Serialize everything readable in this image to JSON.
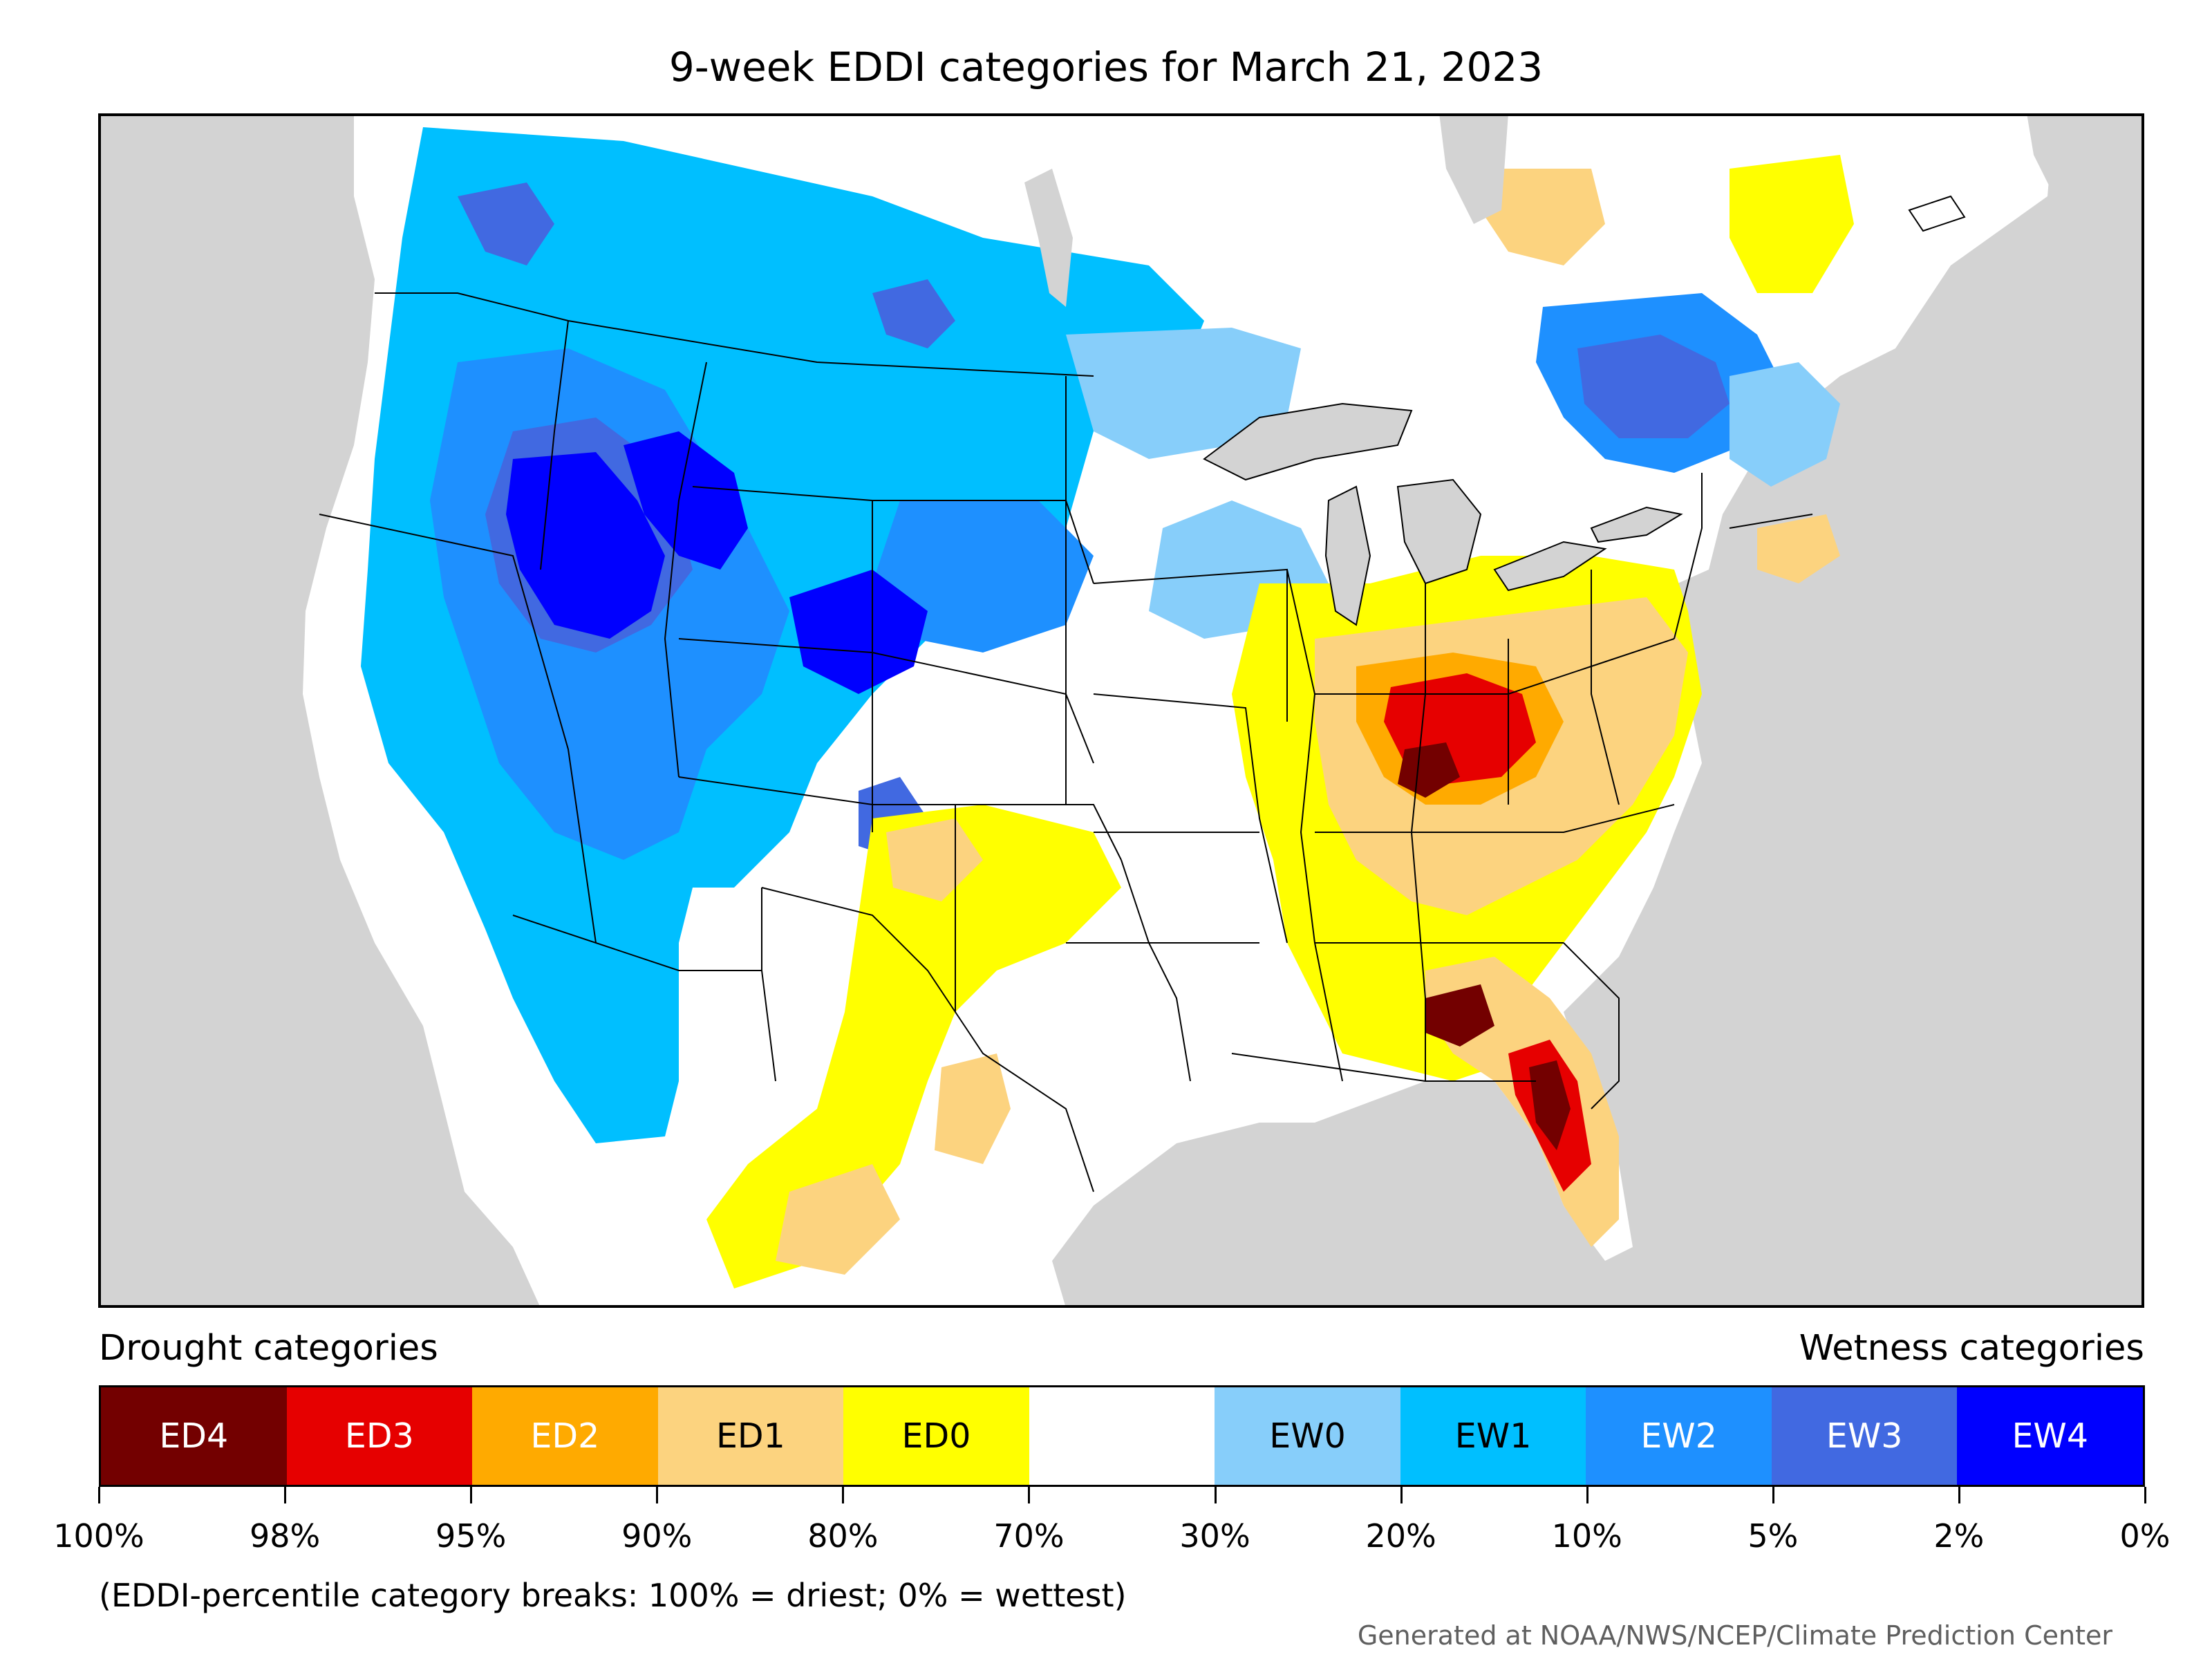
{
  "title": "9-week EDDI categories for March 21, 2023",
  "legend": {
    "drought_label": "Drought categories",
    "wetness_label": "Wetness categories",
    "categories": [
      {
        "label": "ED4",
        "color": "#730000",
        "text_color": "#ffffff"
      },
      {
        "label": "ED3",
        "color": "#e60000",
        "text_color": "#ffffff"
      },
      {
        "label": "ED2",
        "color": "#ffaa00",
        "text_color": "#ffffff"
      },
      {
        "label": "ED1",
        "color": "#fcd37f",
        "text_color": "#000000"
      },
      {
        "label": "ED0",
        "color": "#ffff00",
        "text_color": "#000000"
      },
      {
        "label": "",
        "color": "#ffffff",
        "text_color": "#000000"
      },
      {
        "label": "EW0",
        "color": "#87cefa",
        "text_color": "#000000"
      },
      {
        "label": "EW1",
        "color": "#00bfff",
        "text_color": "#000000"
      },
      {
        "label": "EW2",
        "color": "#1e90ff",
        "text_color": "#ffffff"
      },
      {
        "label": "EW3",
        "color": "#4169e1",
        "text_color": "#ffffff"
      },
      {
        "label": "EW4",
        "color": "#0000ff",
        "text_color": "#ffffff"
      }
    ],
    "breaks": [
      "100%",
      "98%",
      "95%",
      "90%",
      "80%",
      "70%",
      "30%",
      "20%",
      "10%",
      "5%",
      "2%",
      "0%"
    ]
  },
  "note": "(EDDI-percentile category breaks: 100% = driest; 0% = wettest)",
  "credit": "Generated at NOAA/NWS/NCEP/Climate Prediction Center",
  "colors": {
    "land_outside": "#d3d3d3",
    "water": "#d3d3d3",
    "border": "#000000"
  }
}
